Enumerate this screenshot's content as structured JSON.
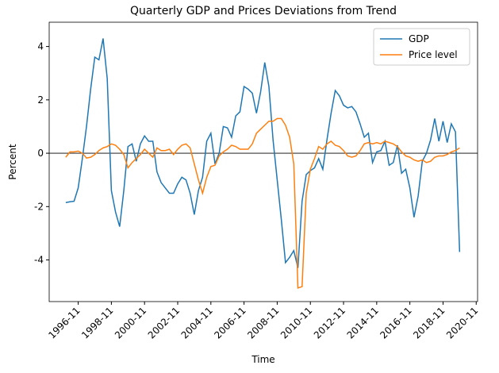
{
  "chart_data": {
    "type": "line",
    "title": "Quarterly GDP and Prices Deviations from Trend",
    "xlabel": "Time",
    "ylabel": "Percent",
    "x": [
      "1996-02",
      "1996-05",
      "1996-08",
      "1996-11",
      "1997-02",
      "1997-05",
      "1997-08",
      "1997-11",
      "1998-02",
      "1998-05",
      "1998-08",
      "1998-11",
      "1999-02",
      "1999-05",
      "1999-08",
      "1999-11",
      "2000-02",
      "2000-05",
      "2000-08",
      "2000-11",
      "2001-02",
      "2001-05",
      "2001-08",
      "2001-11",
      "2002-02",
      "2002-05",
      "2002-08",
      "2002-11",
      "2003-02",
      "2003-05",
      "2003-08",
      "2003-11",
      "2004-02",
      "2004-05",
      "2004-08",
      "2004-11",
      "2005-02",
      "2005-05",
      "2005-08",
      "2005-11",
      "2006-02",
      "2006-05",
      "2006-08",
      "2006-11",
      "2007-02",
      "2007-05",
      "2007-08",
      "2007-11",
      "2008-02",
      "2008-05",
      "2008-08",
      "2008-11",
      "2009-02",
      "2009-05",
      "2009-08",
      "2009-11",
      "2010-02",
      "2010-05",
      "2010-08",
      "2010-11",
      "2011-02",
      "2011-05",
      "2011-08",
      "2011-11",
      "2012-02",
      "2012-05",
      "2012-08",
      "2012-11",
      "2013-02",
      "2013-05",
      "2013-08",
      "2013-11",
      "2014-02",
      "2014-05",
      "2014-08",
      "2014-11",
      "2015-02",
      "2015-05",
      "2015-08",
      "2015-11",
      "2016-02",
      "2016-05",
      "2016-08",
      "2016-11",
      "2017-02",
      "2017-05",
      "2017-08",
      "2017-11",
      "2018-02",
      "2018-05",
      "2018-08",
      "2018-11",
      "2019-02",
      "2019-05",
      "2019-08",
      "2019-11"
    ],
    "series": [
      {
        "name": "GDP",
        "color": "#1f77b4",
        "values": [
          -1.85,
          -1.82,
          -1.8,
          -1.3,
          -0.2,
          1.0,
          2.4,
          3.6,
          3.5,
          4.3,
          2.8,
          -1.4,
          -2.2,
          -2.75,
          -1.4,
          0.25,
          0.35,
          -0.3,
          0.35,
          0.65,
          0.45,
          0.45,
          -0.7,
          -1.1,
          -1.3,
          -1.5,
          -1.5,
          -1.15,
          -0.9,
          -1.0,
          -1.5,
          -2.3,
          -1.4,
          -0.9,
          0.45,
          0.75,
          -0.4,
          0.0,
          1.0,
          0.95,
          0.6,
          1.4,
          1.55,
          2.5,
          2.4,
          2.25,
          1.5,
          2.3,
          3.4,
          2.5,
          0.5,
          -1.0,
          -2.5,
          -4.1,
          -3.9,
          -3.65,
          -4.3,
          -1.8,
          -0.8,
          -0.65,
          -0.55,
          -0.2,
          -0.6,
          0.5,
          1.5,
          2.35,
          2.15,
          1.8,
          1.7,
          1.75,
          1.55,
          1.1,
          0.6,
          0.75,
          -0.35,
          0.05,
          0.1,
          0.45,
          -0.45,
          -0.35,
          0.3,
          -0.75,
          -0.6,
          -1.3,
          -2.4,
          -1.6,
          -0.3,
          0.0,
          0.5,
          1.3,
          0.45,
          1.2,
          0.4,
          1.1,
          0.8,
          -3.7
        ]
      },
      {
        "name": "Price level",
        "color": "#ff7f0e",
        "values": [
          -0.15,
          0.05,
          0.05,
          0.08,
          0.0,
          -0.18,
          -0.15,
          -0.05,
          0.1,
          0.2,
          0.25,
          0.35,
          0.3,
          0.15,
          -0.05,
          -0.55,
          -0.35,
          -0.2,
          -0.05,
          0.15,
          0.0,
          -0.15,
          0.2,
          0.1,
          0.1,
          0.15,
          -0.05,
          0.15,
          0.3,
          0.35,
          0.2,
          -0.4,
          -1.0,
          -1.5,
          -0.9,
          -0.5,
          -0.45,
          -0.1,
          0.05,
          0.15,
          0.3,
          0.25,
          0.15,
          0.15,
          0.15,
          0.35,
          0.75,
          0.9,
          1.05,
          1.2,
          1.2,
          1.3,
          1.3,
          1.05,
          0.6,
          -0.4,
          -5.05,
          -5.0,
          -1.5,
          -0.6,
          -0.2,
          0.25,
          0.15,
          0.35,
          0.45,
          0.3,
          0.25,
          0.1,
          -0.1,
          -0.15,
          -0.1,
          0.1,
          0.35,
          0.4,
          0.35,
          0.4,
          0.35,
          0.45,
          0.4,
          0.35,
          0.25,
          0.05,
          -0.1,
          -0.15,
          -0.25,
          -0.3,
          -0.25,
          -0.35,
          -0.3,
          -0.15,
          -0.1,
          -0.1,
          -0.05,
          0.05,
          0.1,
          0.2
        ]
      }
    ],
    "xlim": [
      "1995-02",
      "2020-12"
    ],
    "xticks": [
      "1996-11",
      "1998-11",
      "2000-11",
      "2002-11",
      "2004-11",
      "2006-11",
      "2008-11",
      "2010-11",
      "2012-11",
      "2014-11",
      "2016-11",
      "2018-11",
      "2020-11"
    ],
    "ylim": [
      -5.56,
      4.91
    ],
    "yticks": [
      -4,
      -2,
      0,
      2,
      4
    ],
    "reference_line": 0,
    "legend": "upper right"
  }
}
